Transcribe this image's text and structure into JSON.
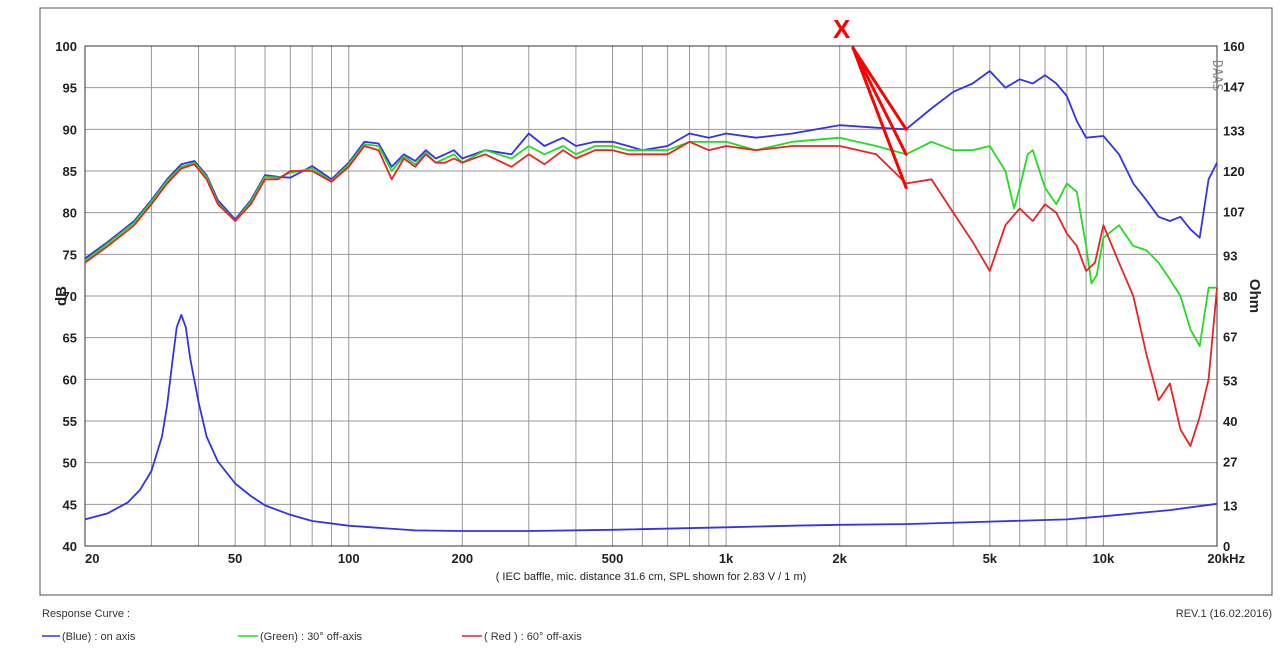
{
  "chart_data": {
    "type": "line",
    "xscale": "log",
    "xlim": [
      20,
      20000
    ],
    "ylim": [
      40,
      100
    ],
    "ylim_right": [
      0,
      160
    ],
    "grid": true,
    "ylabel": "dB",
    "ylabel_right": "Ohm",
    "xlabel": "( IEC baffle, mic. distance 31.6 cm, SPL shown for 2.83 V / 1 m)",
    "x_ticks": [
      {
        "value": 20,
        "label": "20"
      },
      {
        "value": 50,
        "label": "50"
      },
      {
        "value": 100,
        "label": "100"
      },
      {
        "value": 200,
        "label": "200"
      },
      {
        "value": 500,
        "label": "500"
      },
      {
        "value": 1000,
        "label": "1k"
      },
      {
        "value": 2000,
        "label": "2k"
      },
      {
        "value": 5000,
        "label": "5k"
      },
      {
        "value": 10000,
        "label": "10k"
      },
      {
        "value": 20000,
        "label": "20kHz"
      }
    ],
    "y_ticks_left": [
      "40",
      "45",
      "50",
      "55",
      "60",
      "65",
      "70",
      "75",
      "80",
      "85",
      "90",
      "95",
      "100"
    ],
    "y_ticks_right": [
      {
        "value": 0,
        "label": "0"
      },
      {
        "value": 13,
        "label": "13"
      },
      {
        "value": 27,
        "label": "27"
      },
      {
        "value": 40,
        "label": "40"
      },
      {
        "value": 53,
        "label": "53"
      },
      {
        "value": 67,
        "label": "67"
      },
      {
        "value": 80,
        "label": "80"
      },
      {
        "value": 93,
        "label": "93"
      },
      {
        "value": 107,
        "label": "107"
      },
      {
        "value": 120,
        "label": "120"
      },
      {
        "value": 133,
        "label": "133"
      },
      {
        "value": 147,
        "label": "147"
      },
      {
        "value": 160,
        "label": "160"
      }
    ],
    "watermark": "DAAS",
    "annotation": {
      "text": "X",
      "color": "#ff0000",
      "points_to_x": [
        3000,
        3000,
        3000
      ],
      "points_to_y": [
        90,
        87,
        83
      ]
    },
    "series": [
      {
        "color": "#3333ee",
        "axis": "left",
        "x": [
          20,
          23,
          27,
          30,
          33,
          36,
          39,
          42,
          45,
          50,
          55,
          60,
          65,
          70,
          80,
          90,
          100,
          110,
          120,
          130,
          140,
          150,
          160,
          170,
          180,
          190,
          200,
          230,
          270,
          300,
          330,
          370,
          400,
          450,
          500,
          550,
          600,
          700,
          800,
          900,
          1000,
          1200,
          1500,
          2000,
          2500,
          3000,
          3500,
          4000,
          4500,
          5000,
          5500,
          6000,
          6500,
          7000,
          7500,
          8000,
          8500,
          9000,
          10000,
          11000,
          12000,
          13000,
          14000,
          15000,
          16000,
          17000,
          18000,
          19000,
          20000
        ],
        "y": [
          74.5,
          76.5,
          79.0,
          81.5,
          84.0,
          85.8,
          86.2,
          84.5,
          81.5,
          79.2,
          81.5,
          84.5,
          84.3,
          84.2,
          85.6,
          84.0,
          86.0,
          88.5,
          88.3,
          85.5,
          87.0,
          86.2,
          87.5,
          86.5,
          87.0,
          87.5,
          86.5,
          87.5,
          87.0,
          89.5,
          88.0,
          89.0,
          88.0,
          88.5,
          88.5,
          88.0,
          87.5,
          88.0,
          89.5,
          89.0,
          89.5,
          89.0,
          89.5,
          90.5,
          90.2,
          90.0,
          92.5,
          94.5,
          95.5,
          97.0,
          95.0,
          96.0,
          95.5,
          96.5,
          95.5,
          94.0,
          91.0,
          89.0,
          89.2,
          87.0,
          83.5,
          81.5,
          79.5,
          79.0,
          79.5,
          78.0,
          77.0,
          84.0,
          86.0
        ]
      },
      {
        "color": "#22dd22",
        "axis": "left",
        "x": [
          20,
          23,
          27,
          30,
          33,
          36,
          39,
          42,
          45,
          50,
          55,
          60,
          65,
          70,
          80,
          90,
          100,
          110,
          120,
          130,
          140,
          150,
          160,
          170,
          180,
          190,
          200,
          230,
          270,
          300,
          330,
          370,
          400,
          450,
          500,
          550,
          600,
          700,
          800,
          900,
          1000,
          1200,
          1500,
          2000,
          2500,
          3000,
          3500,
          4000,
          4500,
          5000,
          5500,
          5800,
          6000,
          6300,
          6500,
          7000,
          7500,
          8000,
          8500,
          9000,
          9300,
          9600,
          10000,
          11000,
          12000,
          13000,
          14000,
          15000,
          16000,
          17000,
          18000,
          19000,
          20000
        ],
        "y": [
          74.2,
          76.3,
          78.8,
          81.3,
          83.8,
          85.5,
          86.0,
          84.3,
          81.2,
          79.0,
          81.3,
          84.3,
          84.2,
          84.8,
          85.3,
          83.8,
          85.8,
          88.2,
          88.0,
          85.0,
          86.8,
          85.8,
          87.2,
          86.0,
          86.5,
          87.0,
          86.0,
          87.5,
          86.5,
          88.0,
          87.0,
          88.0,
          87.0,
          88.0,
          88.0,
          87.5,
          87.5,
          87.5,
          88.5,
          88.5,
          88.5,
          87.5,
          88.5,
          89.0,
          88.0,
          87.0,
          88.5,
          87.5,
          87.5,
          88.0,
          85.0,
          80.5,
          83.0,
          87.0,
          87.5,
          83.0,
          81.0,
          83.5,
          82.5,
          76.0,
          71.5,
          72.5,
          77.0,
          78.5,
          76.0,
          75.5,
          74.0,
          72.0,
          70.0,
          66.0,
          64.0,
          71.0,
          71.0
        ]
      },
      {
        "color": "#ee2222",
        "axis": "left",
        "x": [
          20,
          23,
          27,
          30,
          33,
          36,
          39,
          42,
          45,
          50,
          55,
          60,
          65,
          70,
          80,
          90,
          100,
          110,
          120,
          130,
          140,
          150,
          160,
          170,
          180,
          190,
          200,
          230,
          270,
          300,
          330,
          370,
          400,
          450,
          500,
          550,
          600,
          700,
          800,
          900,
          1000,
          1200,
          1500,
          2000,
          2500,
          3000,
          3500,
          4000,
          4500,
          5000,
          5500,
          6000,
          6500,
          7000,
          7500,
          8000,
          8500,
          9000,
          9500,
          10000,
          11000,
          12000,
          13000,
          14000,
          15000,
          16000,
          17000,
          18000,
          19000,
          20000
        ],
        "y": [
          74.0,
          76.0,
          78.5,
          81.0,
          83.5,
          85.3,
          85.8,
          84.0,
          81.0,
          79.0,
          81.0,
          84.0,
          84.0,
          85.0,
          85.0,
          83.7,
          85.5,
          88.0,
          87.5,
          84.0,
          86.5,
          85.5,
          87.0,
          86.0,
          86.0,
          86.5,
          86.0,
          87.0,
          85.5,
          87.0,
          85.8,
          87.5,
          86.5,
          87.5,
          87.5,
          87.0,
          87.0,
          87.0,
          88.5,
          87.5,
          88.0,
          87.5,
          88.0,
          88.0,
          87.0,
          83.5,
          84.0,
          80.0,
          76.5,
          73.0,
          78.5,
          80.5,
          79.0,
          81.0,
          80.0,
          77.5,
          76.0,
          73.0,
          74.0,
          78.5,
          74.0,
          70.0,
          63.0,
          57.5,
          59.5,
          54.0,
          52.0,
          55.5,
          60.0,
          71.0
        ]
      },
      {
        "color": "#3333ee",
        "axis": "right",
        "x": [
          20,
          23,
          26,
          28,
          30,
          32,
          33,
          34,
          35,
          36,
          37,
          38,
          40,
          42,
          45,
          50,
          55,
          60,
          70,
          80,
          100,
          150,
          200,
          300,
          500,
          1000,
          1500,
          2000,
          3000,
          5000,
          8000,
          10000,
          15000,
          20000
        ],
        "y": [
          8.5,
          10.5,
          14.0,
          18.0,
          24.0,
          35.0,
          45.0,
          58.0,
          70.0,
          74.0,
          70.0,
          60.0,
          46.0,
          35.0,
          27.0,
          20.0,
          16.0,
          13.0,
          10.0,
          8.0,
          6.5,
          5.0,
          4.8,
          4.8,
          5.2,
          6.0,
          6.5,
          6.8,
          7.0,
          7.8,
          8.5,
          9.5,
          11.5,
          13.5
        ]
      }
    ]
  },
  "legend": {
    "title": "Response Curve :",
    "items": [
      {
        "label": "(Blue)  : on axis",
        "color": "#3333ee"
      },
      {
        "label": "(Green) : 30° off-axis",
        "color": "#22dd22"
      },
      {
        "label": "( Red ) : 60° off-axis",
        "color": "#ee2222"
      }
    ],
    "revision": "REV.1 (16.02.2016)"
  }
}
